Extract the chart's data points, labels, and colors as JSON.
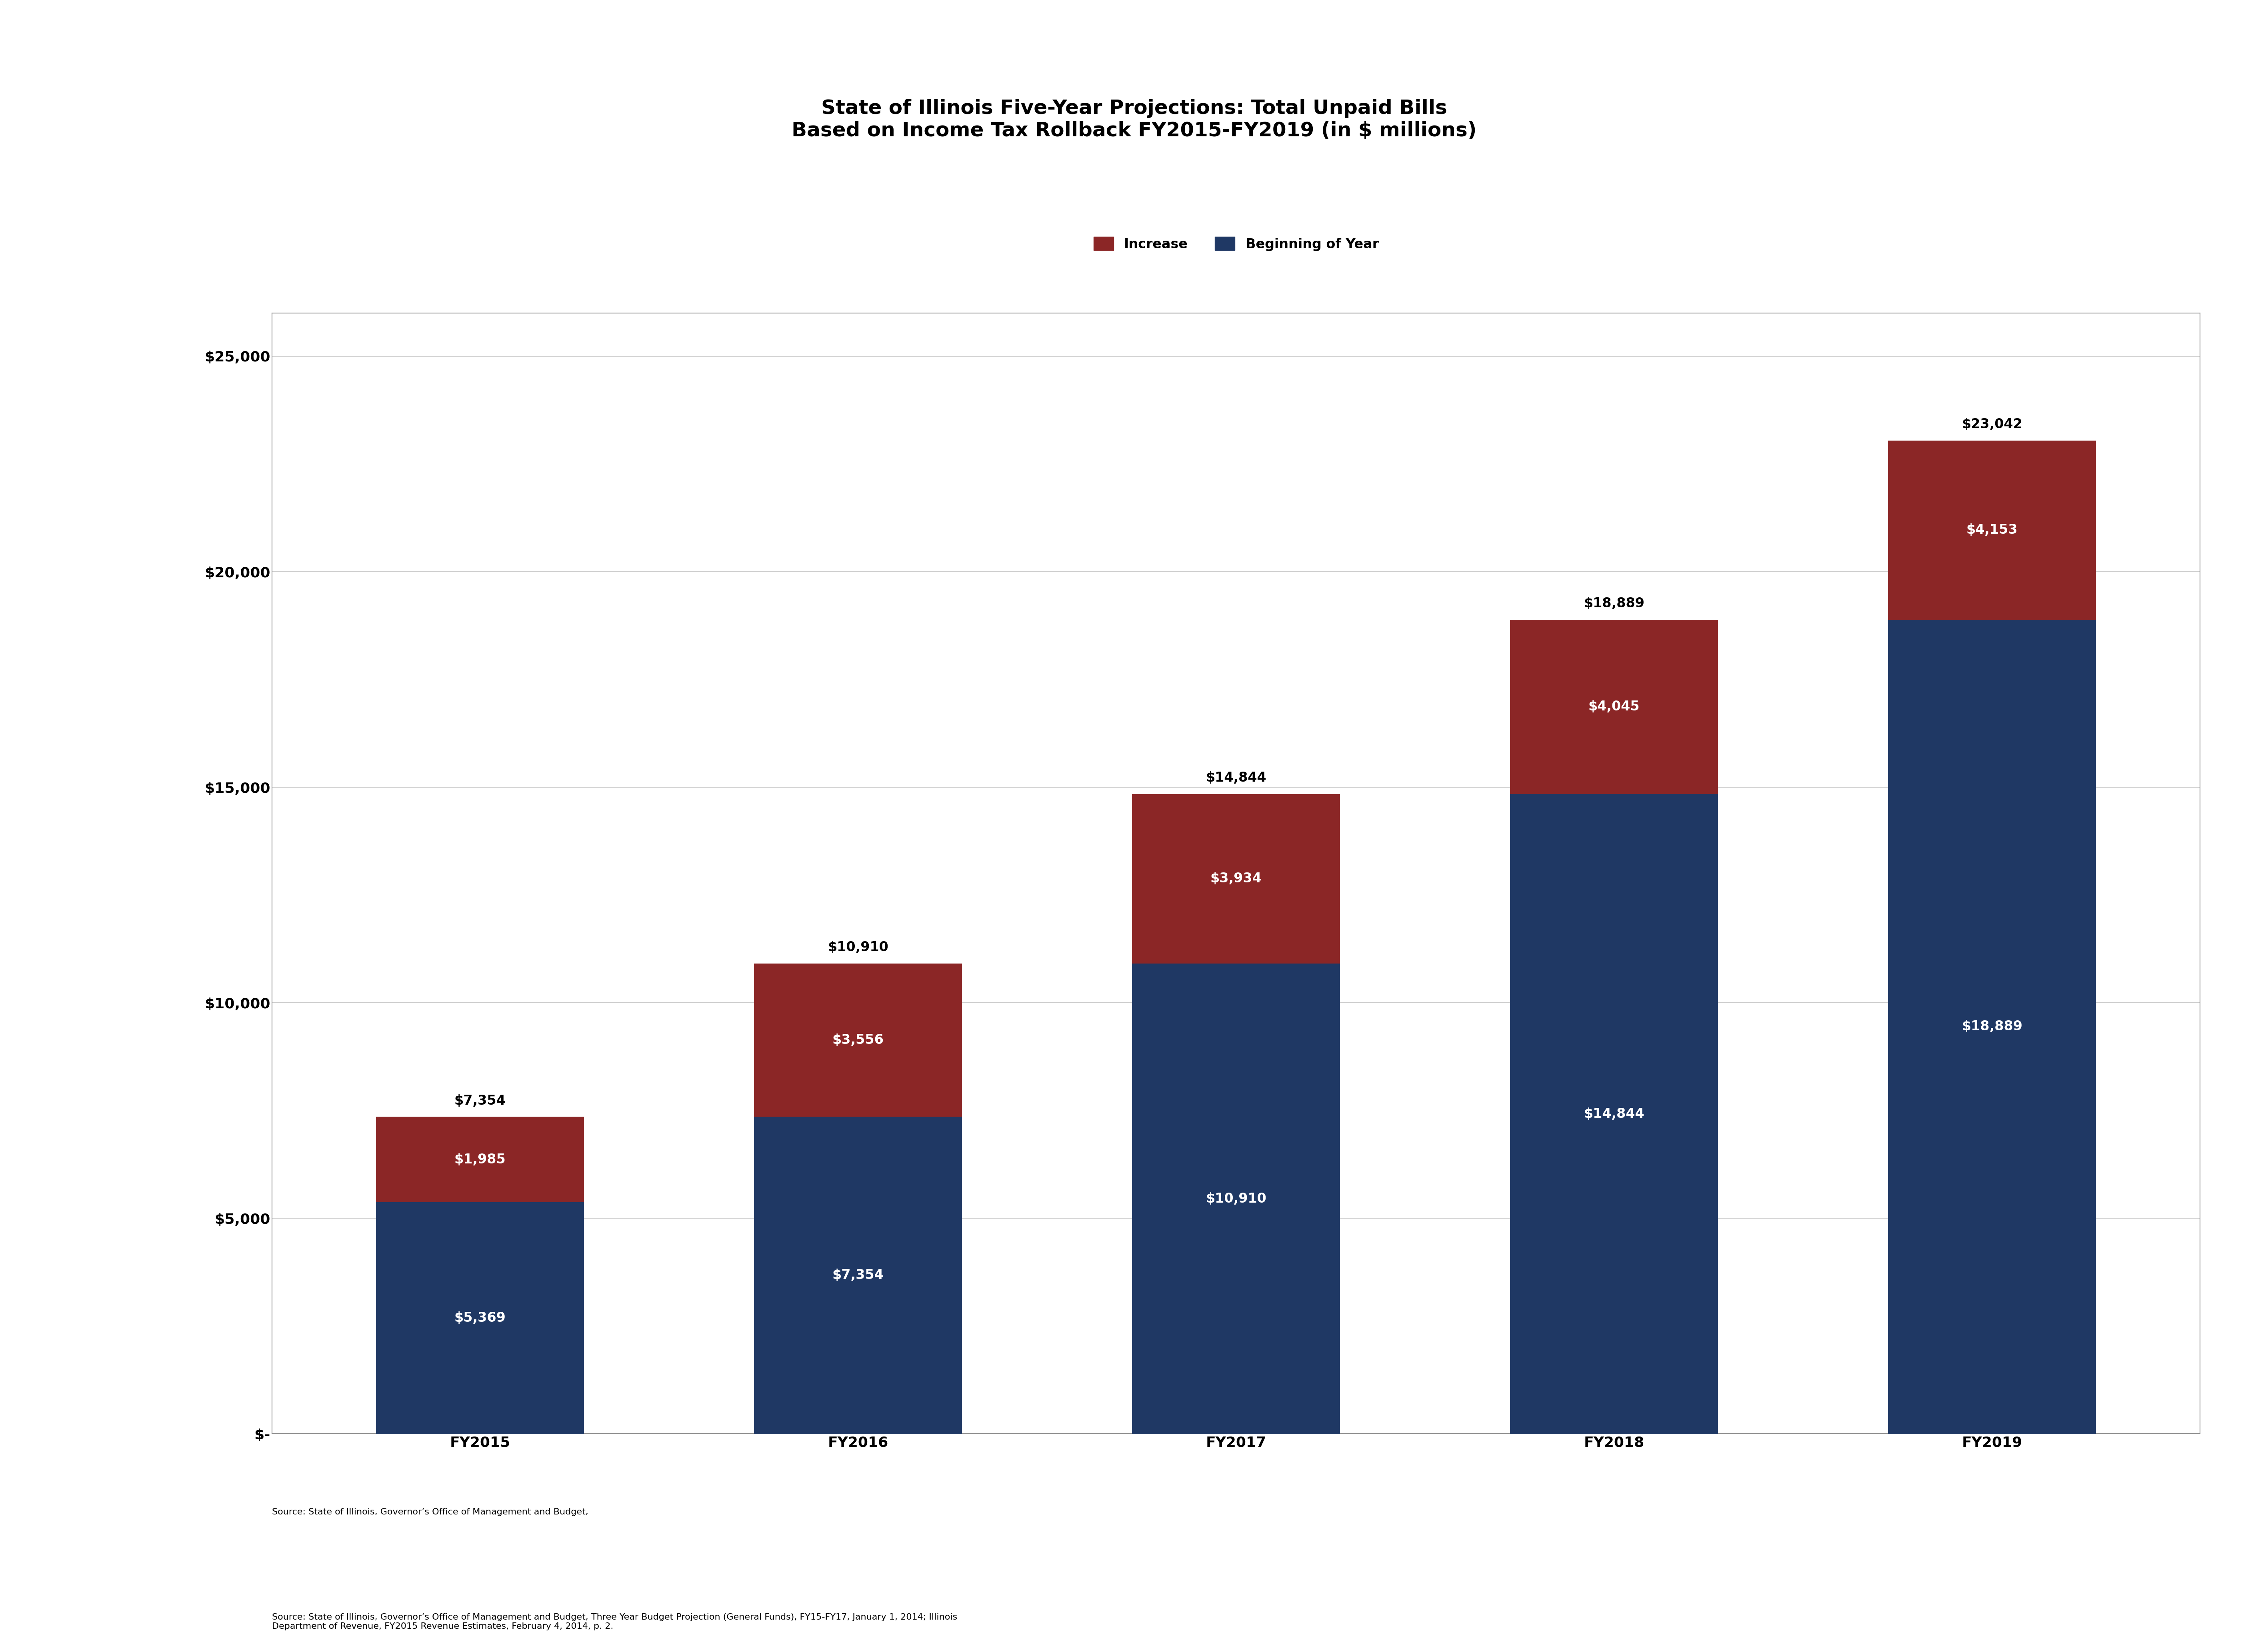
{
  "title_line1": "State of Illinois Five-Year Projections: Total Unpaid Bills",
  "title_line2": "Based on Income Tax Rollback FY2015-FY2019 (in $ millions)",
  "categories": [
    "FY2015",
    "FY2016",
    "FY2017",
    "FY2018",
    "FY2019"
  ],
  "beginning_of_year": [
    5369,
    7354,
    10910,
    14844,
    18889
  ],
  "increase": [
    1985,
    3556,
    3934,
    4045,
    4153
  ],
  "totals": [
    7354,
    10910,
    14844,
    18889,
    23042
  ],
  "bar_color_base": "#1F3864",
  "bar_color_increase": "#8B2626",
  "ylim": [
    0,
    26000
  ],
  "ytick_values": [
    0,
    5000,
    10000,
    15000,
    20000,
    25000
  ],
  "ytick_labels": [
    "$-",
    "$5,000",
    "$10,000",
    "$15,000",
    "$20,000",
    "$25,000"
  ],
  "legend_labels": [
    "Increase",
    "Beginning of Year"
  ],
  "legend_colors": [
    "#8B2626",
    "#1F3864"
  ],
  "grid_color": "#C0C0C0",
  "border_color": "#888888",
  "tick_fontsize": 26,
  "title_fontsize": 36,
  "annotation_fontsize": 24,
  "total_annotation_fontsize": 24,
  "source_fontsize": 16,
  "legend_fontsize": 24,
  "bar_width": 0.55
}
